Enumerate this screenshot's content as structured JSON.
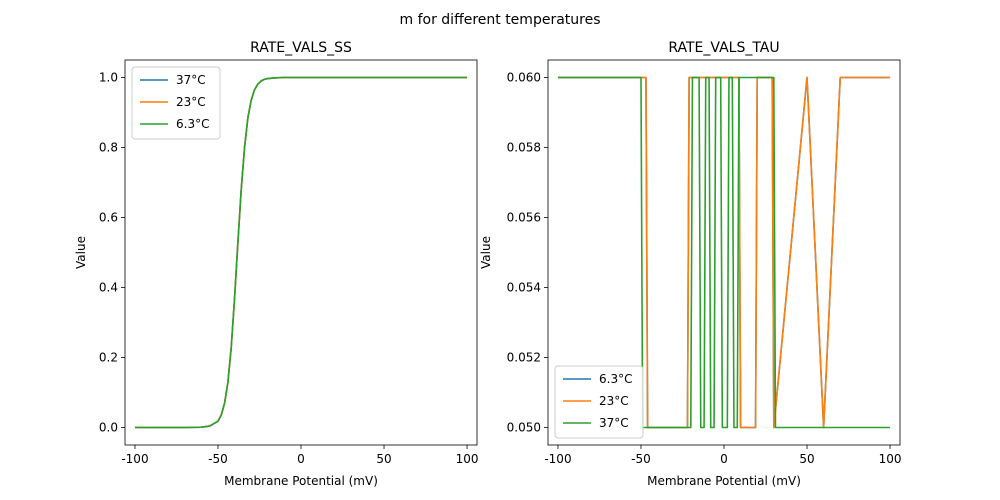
{
  "figure": {
    "title": "m for different temperatures"
  },
  "chart_data": [
    {
      "type": "line",
      "title": "RATE_VALS_SS",
      "xlabel": "Membrane Potential (mV)",
      "ylabel": "Value",
      "xlim": [
        -106,
        106
      ],
      "ylim": [
        -0.05,
        1.05
      ],
      "xticks": [
        -100,
        -50,
        0,
        50,
        100
      ],
      "yticks": [
        0.0,
        0.2,
        0.4,
        0.6,
        0.8,
        1.0
      ],
      "ytick_labels": [
        "0.0",
        "0.2",
        "0.4",
        "0.6",
        "0.8",
        "1.0"
      ],
      "grid": false,
      "legend": "top-left",
      "x": [
        -100,
        -90,
        -80,
        -70,
        -60,
        -55,
        -50,
        -48,
        -46,
        -44,
        -42,
        -40,
        -38,
        -36,
        -34,
        -32,
        -30,
        -28,
        -26,
        -24,
        -22,
        -20,
        -15,
        -10,
        0,
        20,
        40,
        60,
        80,
        100
      ],
      "series": [
        {
          "name": "37°C",
          "color": "#1f77b4",
          "values": [
            0.0,
            0.0,
            0.0,
            0.0,
            0.001,
            0.004,
            0.018,
            0.036,
            0.07,
            0.13,
            0.23,
            0.37,
            0.53,
            0.68,
            0.8,
            0.885,
            0.935,
            0.965,
            0.981,
            0.99,
            0.995,
            0.997,
            0.999,
            1.0,
            1.0,
            1.0,
            1.0,
            1.0,
            1.0,
            1.0
          ]
        },
        {
          "name": "23°C",
          "color": "#ff7f0e",
          "values": [
            0.0,
            0.0,
            0.0,
            0.0,
            0.001,
            0.004,
            0.018,
            0.036,
            0.07,
            0.13,
            0.23,
            0.37,
            0.53,
            0.68,
            0.8,
            0.885,
            0.935,
            0.965,
            0.981,
            0.99,
            0.995,
            0.997,
            0.999,
            1.0,
            1.0,
            1.0,
            1.0,
            1.0,
            1.0,
            1.0
          ]
        },
        {
          "name": "6.3°C",
          "color": "#2ca02c",
          "values": [
            0.0,
            0.0,
            0.0,
            0.0,
            0.001,
            0.004,
            0.018,
            0.036,
            0.07,
            0.13,
            0.23,
            0.37,
            0.53,
            0.68,
            0.8,
            0.885,
            0.935,
            0.965,
            0.981,
            0.99,
            0.995,
            0.997,
            0.999,
            1.0,
            1.0,
            1.0,
            1.0,
            1.0,
            1.0,
            1.0
          ]
        }
      ]
    },
    {
      "type": "line",
      "title": "RATE_VALS_TAU",
      "xlabel": "Membrane Potential (mV)",
      "ylabel": "Value",
      "xlim": [
        -106,
        106
      ],
      "ylim": [
        0.0495,
        0.0605
      ],
      "xticks": [
        -100,
        -50,
        0,
        50,
        100
      ],
      "yticks": [
        0.05,
        0.052,
        0.054,
        0.056,
        0.058,
        0.06
      ],
      "ytick_labels": [
        "0.050",
        "0.052",
        "0.054",
        "0.056",
        "0.058",
        "0.060"
      ],
      "grid": false,
      "legend": "bottom-left",
      "series": [
        {
          "name": "6.3°C",
          "color": "#1f77b4",
          "x": [
            -100,
            -47,
            -46,
            -22,
            -21,
            9,
            10,
            19,
            20,
            29,
            30,
            50,
            60,
            70,
            100
          ],
          "values": [
            0.06,
            0.06,
            0.05,
            0.05,
            0.06,
            0.06,
            0.05,
            0.05,
            0.06,
            0.06,
            0.05,
            0.06,
            0.05,
            0.06,
            0.06
          ]
        },
        {
          "name": "23°C",
          "color": "#ff7f0e",
          "x": [
            -100,
            -47,
            -46,
            -22,
            -21,
            9,
            10,
            19,
            20,
            29,
            30,
            50,
            60,
            70,
            100
          ],
          "values": [
            0.06,
            0.06,
            0.05,
            0.05,
            0.06,
            0.06,
            0.05,
            0.05,
            0.06,
            0.06,
            0.05,
            0.06,
            0.05,
            0.06,
            0.06
          ]
        },
        {
          "name": "37°C",
          "color": "#2ca02c",
          "x": [
            -100,
            -50,
            -49,
            -20,
            -19,
            -15,
            -14,
            -12,
            -11,
            -9,
            -8,
            -6,
            -5,
            -2,
            -1,
            2,
            3,
            5,
            6,
            8,
            9,
            30,
            31,
            39,
            40,
            100
          ],
          "values": [
            0.06,
            0.06,
            0.05,
            0.05,
            0.06,
            0.06,
            0.05,
            0.05,
            0.06,
            0.06,
            0.05,
            0.05,
            0.06,
            0.06,
            0.05,
            0.05,
            0.06,
            0.06,
            0.05,
            0.05,
            0.06,
            0.06,
            0.05,
            0.05,
            0.05,
            0.05
          ]
        }
      ]
    }
  ]
}
